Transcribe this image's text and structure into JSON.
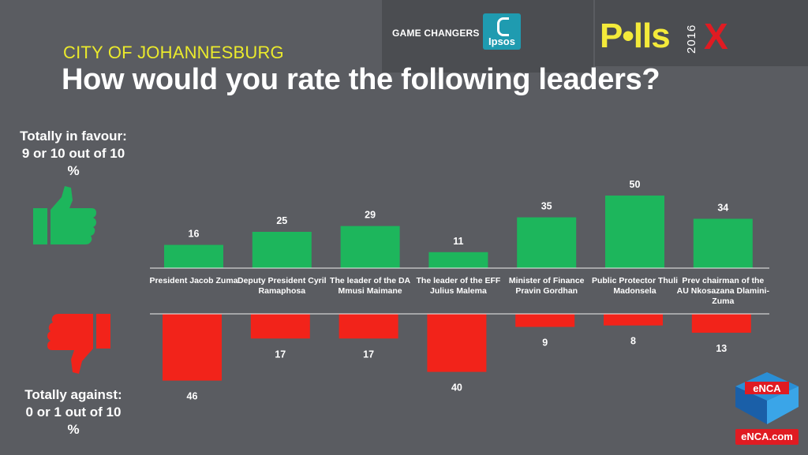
{
  "header": {
    "game_changers": "GAME CHANGERS",
    "ipsos_label": "Ipsos",
    "polls_text": "P•lls",
    "polls_year": "2016",
    "polls_x": "X"
  },
  "subtitle": "CITY OF JOHANNESBURG",
  "title": "How would you rate the following leaders?",
  "favour_label": {
    "line1": "Totally in favour:",
    "line2": "9 or 10 out of 10",
    "line3": "%"
  },
  "against_label": {
    "line1": "Totally against:",
    "line2": "0 or 1  out of 10",
    "line3": "%"
  },
  "brand": {
    "enca_logo_text": "eNCA",
    "enca_url": "eNCA.com"
  },
  "colors": {
    "background": "#5a5c61",
    "favour": "#1db65c",
    "against": "#f2231a",
    "subtitle": "#ebea2c"
  },
  "icons": {
    "favour": "thumbs-up-icon",
    "against": "thumbs-down-icon"
  },
  "chart_data": {
    "type": "bar",
    "title": "How would you rate the following leaders?",
    "xlabel": "",
    "ylabel": "%",
    "categories": [
      [
        "President Jacob Zuma"
      ],
      [
        "Deputy President Cyril",
        "Ramaphosa"
      ],
      [
        "The leader of the DA",
        "Mmusi Maimane"
      ],
      [
        "The leader of the EFF",
        "Julius Malema"
      ],
      [
        "Minister of Finance",
        "Pravin Gordhan"
      ],
      [
        "Public Protector Thuli",
        "Madonsela"
      ],
      [
        "Prev chairman of the",
        "AU Nkosazana Dlamini-",
        "Zuma"
      ]
    ],
    "series": [
      {
        "name": "Totally in favour: 9 or 10 out of 10",
        "values": [
          16,
          25,
          29,
          11,
          35,
          50,
          34
        ]
      },
      {
        "name": "Totally against: 0 or 1  out of 10",
        "values": [
          46,
          17,
          17,
          40,
          9,
          8,
          13
        ]
      }
    ],
    "ylim": [
      0,
      50
    ],
    "grid": false,
    "legend": "left"
  }
}
